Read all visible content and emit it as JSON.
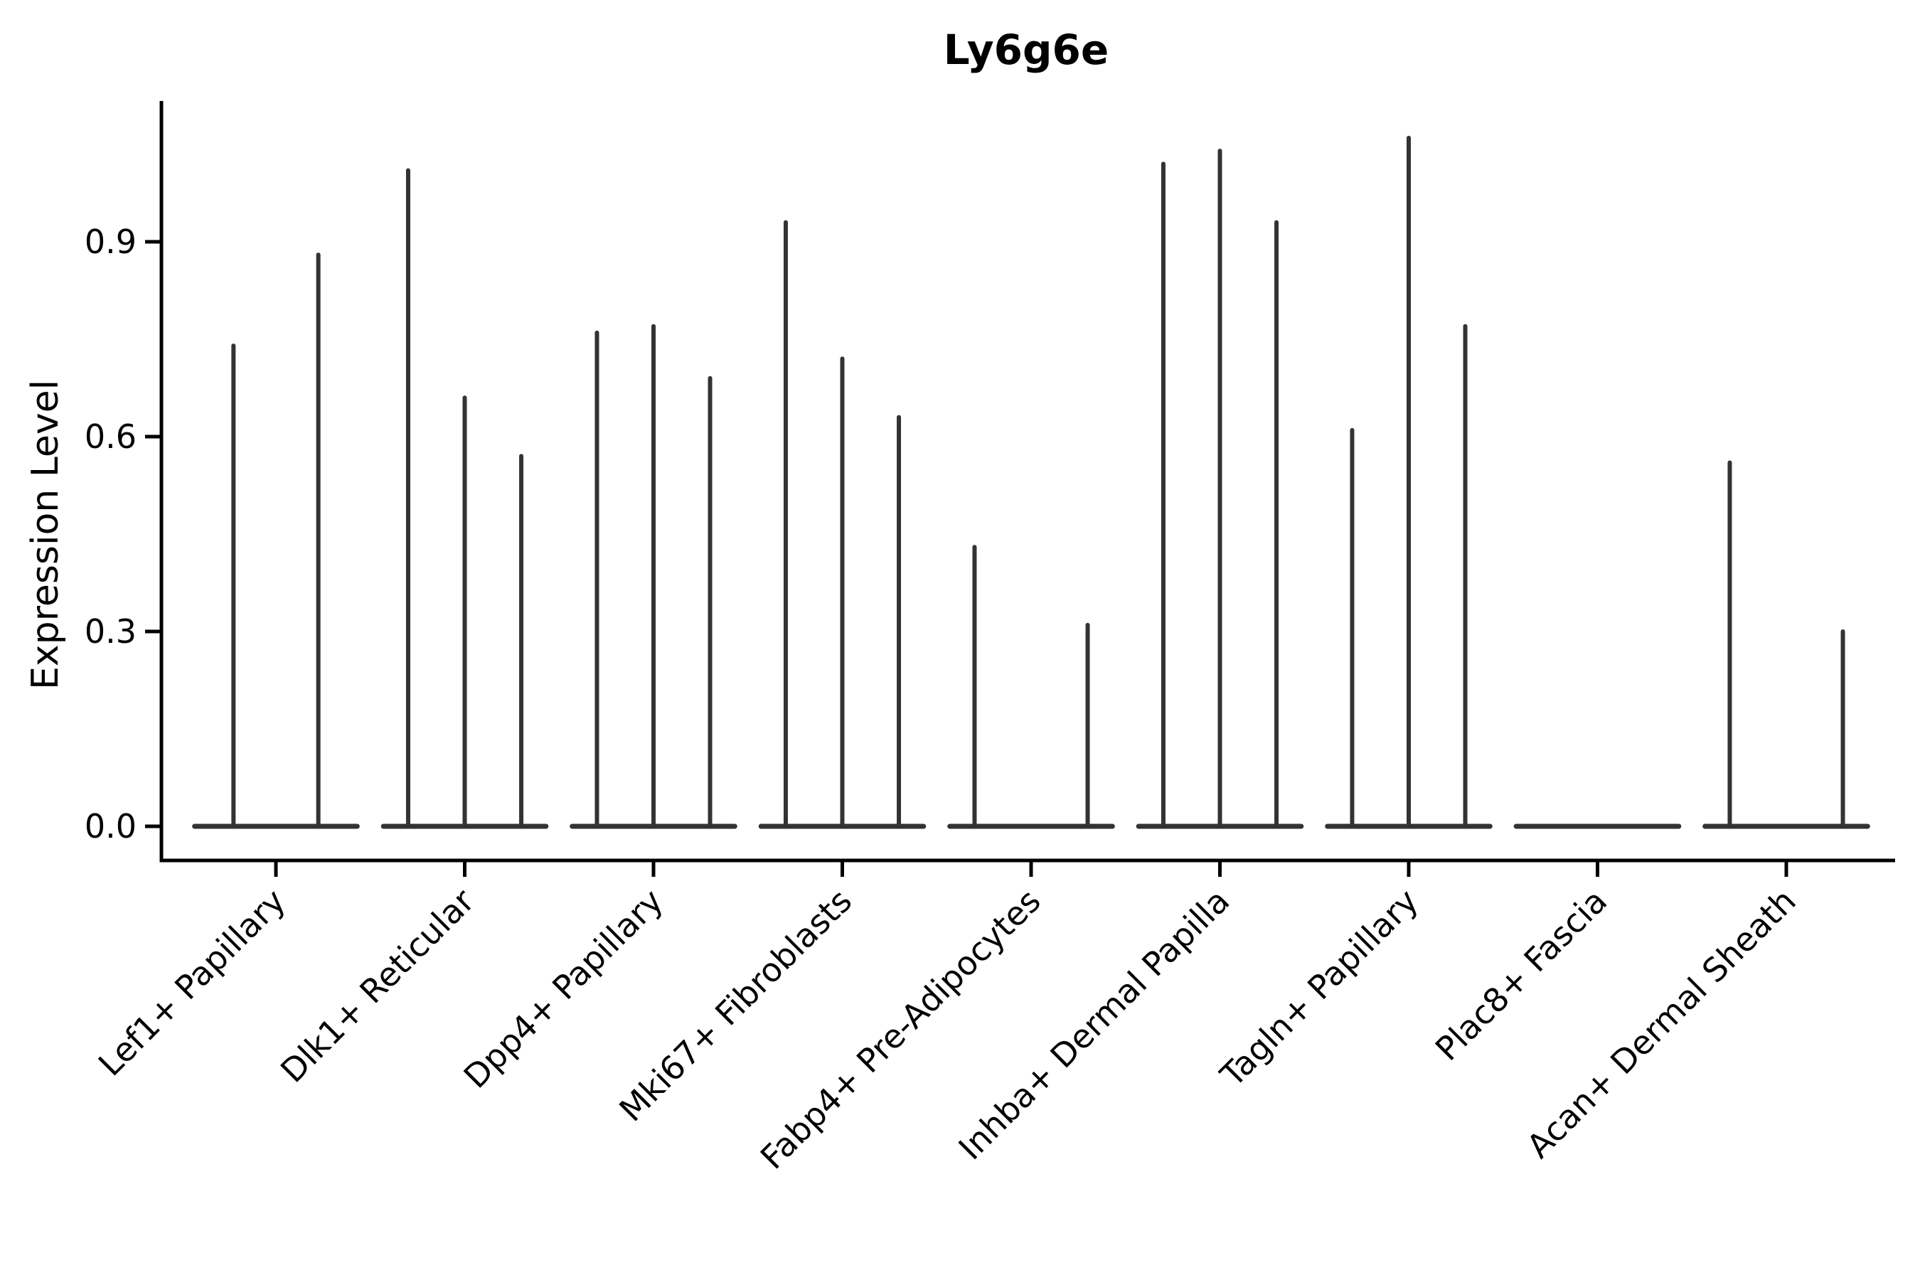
{
  "figure": {
    "background": "#ffffff"
  },
  "chart_data": {
    "type": "violin",
    "title": "Ly6g6e",
    "xlabel": "",
    "ylabel": "Expression Level",
    "grid": false,
    "legend": "none",
    "ylim": [
      -0.05,
      1.11
    ],
    "yticks": [
      {
        "label": "0.0",
        "value": 0.0
      },
      {
        "label": "0.3",
        "value": 0.3
      },
      {
        "label": "0.6",
        "value": 0.6
      },
      {
        "label": "0.9",
        "value": 0.9
      }
    ],
    "categories": [
      "Lef1+ Papillary",
      "Dlk1+ Reticular",
      "Dpp4+ Papillary",
      "Mki67+ Fibroblasts",
      "Fabp4+ Pre-Adipocytes",
      "Inhba+ Dermal Papilla",
      "Tagln+ Papillary",
      "Plac8+ Fascia",
      "Acan+ Dermal Sheath"
    ],
    "violin_description": "Each category holds dodged violins that are flat at expression 0 with a thin vertical spike reaching the maximum expression value; 0 means a fully flat violin (no expressing cells).",
    "groups": [
      {
        "category": "Lef1+ Papillary",
        "spike_maxima": [
          0.74,
          0.88
        ]
      },
      {
        "category": "Dlk1+ Reticular",
        "spike_maxima": [
          1.01,
          0.66,
          0.57
        ]
      },
      {
        "category": "Dpp4+ Papillary",
        "spike_maxima": [
          0.76,
          0.77,
          0.69
        ]
      },
      {
        "category": "Mki67+ Fibroblasts",
        "spike_maxima": [
          0.93,
          0.72,
          0.63
        ]
      },
      {
        "category": "Fabp4+ Pre-Adipocytes",
        "spike_maxima": [
          0.43,
          0,
          0.31
        ]
      },
      {
        "category": "Inhba+ Dermal Papilla",
        "spike_maxima": [
          1.02,
          1.04,
          0.93
        ]
      },
      {
        "category": "Tagln+ Papillary",
        "spike_maxima": [
          0.61,
          1.06,
          0.77
        ]
      },
      {
        "category": "Plac8+ Fascia",
        "spike_maxima": [
          0,
          0,
          0
        ]
      },
      {
        "category": "Acan+ Dermal Sheath",
        "spike_maxima": [
          0.56,
          0,
          0.3
        ]
      }
    ],
    "colors": {
      "violin_stroke": "#333333",
      "axis": "#000000",
      "text": "#000000",
      "background": "#ffffff"
    }
  }
}
